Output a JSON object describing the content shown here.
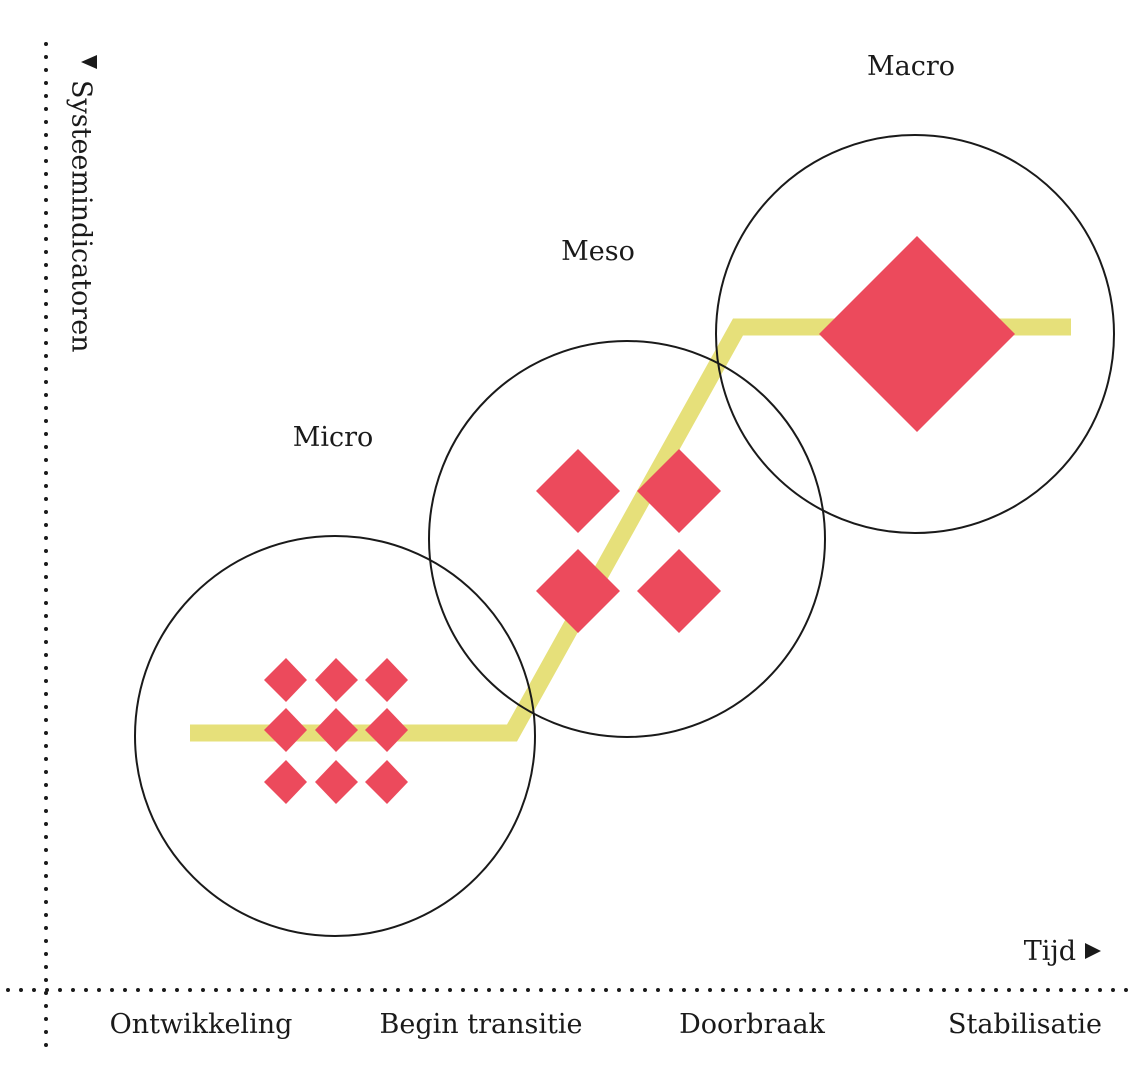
{
  "axes": {
    "y_label": "Systeemindicatoren",
    "x_label": "Tijd"
  },
  "phases": [
    "Ontwikkeling",
    "Begin transitie",
    "Doorbraak",
    "Stabilisatie"
  ],
  "levels": {
    "micro": "Micro",
    "meso": "Meso",
    "macro": "Macro"
  },
  "colors": {
    "diamond": "#ec4a5c",
    "path": "#e6e07a",
    "outline": "#1a1a1a"
  }
}
